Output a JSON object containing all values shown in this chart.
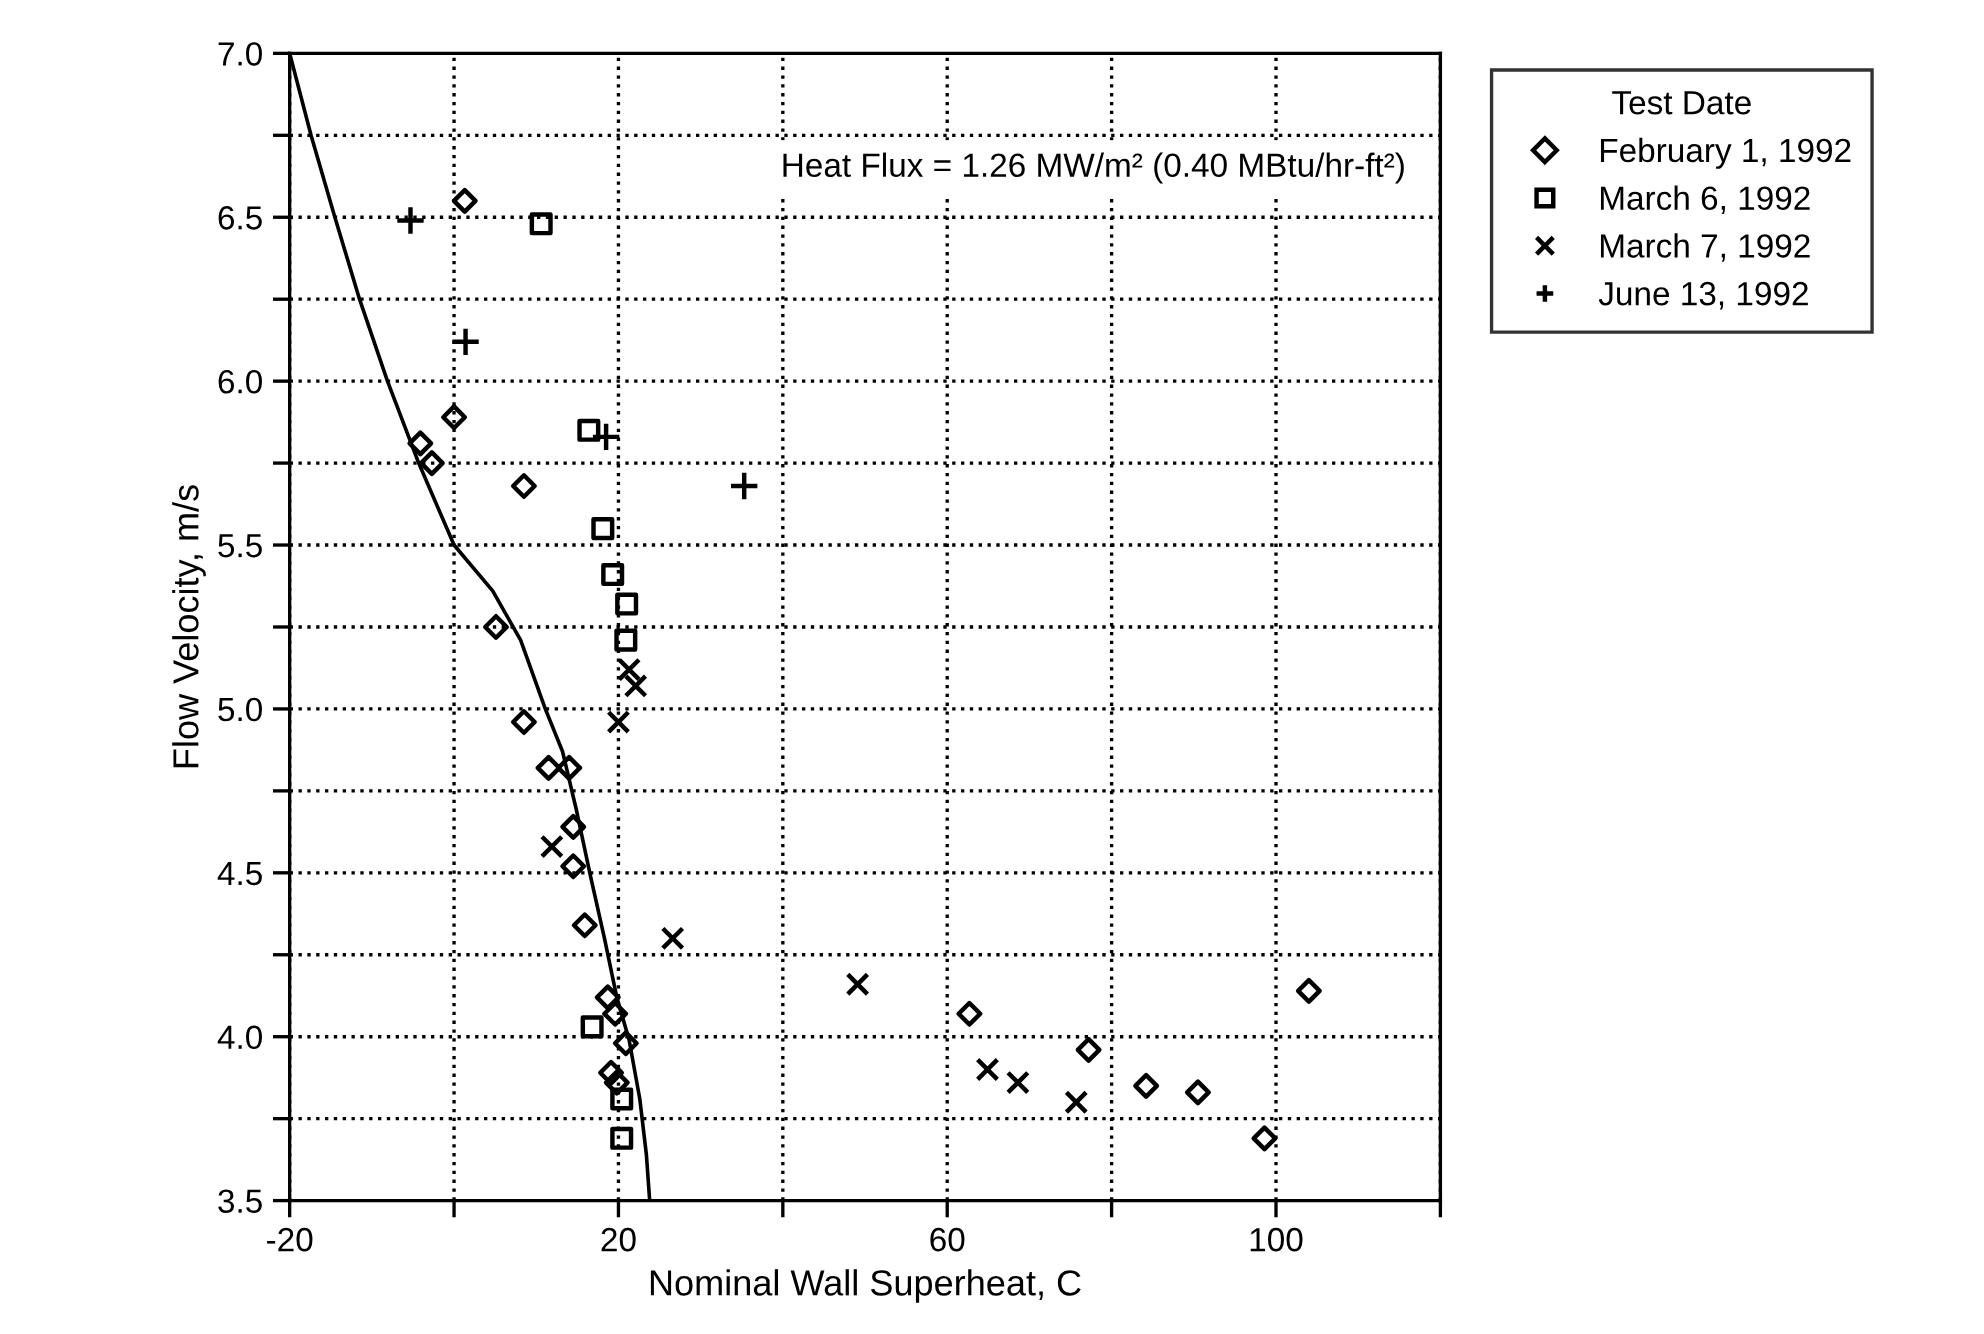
{
  "chart_data": {
    "type": "scatter",
    "xlabel": "Nominal Wall Superheat, C",
    "ylabel": "Flow Velocity, m/s",
    "legend_title": "Test Date",
    "annotations": [
      "Heat Flux = 1.26 MW/m² (0.40 MBtu/hr-ft²)"
    ],
    "xlim": [
      -20,
      120
    ],
    "ylim": [
      3.5,
      7.0
    ],
    "xticks": [
      -20,
      {
        "value": 0,
        "label": null
      },
      20,
      {
        "value": 40,
        "label": null
      },
      60,
      {
        "value": 80,
        "label": null
      },
      100,
      {
        "value": 120,
        "label": null
      }
    ],
    "yticks": [
      3.5,
      {
        "value": 3.75,
        "label": null
      },
      {
        "value": 4,
        "label": "4.0"
      },
      {
        "value": 4.25,
        "label": null
      },
      4.5,
      {
        "value": 4.75,
        "label": null
      },
      {
        "value": 5,
        "label": "5.0"
      },
      {
        "value": 5.25,
        "label": null
      },
      5.5,
      {
        "value": 5.75,
        "label": null
      },
      {
        "value": 6,
        "label": "6.0"
      },
      {
        "value": 6.25,
        "label": null
      },
      6.5,
      {
        "value": 6.75,
        "label": null
      },
      {
        "value": 7,
        "label": "7.0"
      }
    ],
    "grid": true,
    "legend": "top right",
    "series": [
      {
        "name": "February 1, 1992",
        "color": "#000000",
        "marker": "diamond",
        "x": [
          1.3,
          0,
          -4.1,
          -2.7,
          8.5,
          5.1,
          8.5,
          11.5,
          14.0,
          14.5,
          14.5,
          15.9,
          18.7,
          19.6,
          20.9,
          19.1,
          19.8,
          62.7,
          77.2,
          84.2,
          90.5,
          98.6,
          104.0
        ],
        "values": [
          6.55,
          5.89,
          5.81,
          5.75,
          5.68,
          5.25,
          4.96,
          4.82,
          4.82,
          4.64,
          4.52,
          4.34,
          4.12,
          4.07,
          3.98,
          3.89,
          3.86,
          4.07,
          3.96,
          3.85,
          3.83,
          3.69,
          4.14
        ]
      },
      {
        "name": "March 6, 1992",
        "color": "#000000",
        "marker": "square",
        "x": [
          10.6,
          16.4,
          18.1,
          19.3,
          21.0,
          20.9,
          16.8,
          20.4,
          20.4
        ],
        "values": [
          6.48,
          5.85,
          5.55,
          5.41,
          5.32,
          5.21,
          4.03,
          3.81,
          3.69
        ]
      },
      {
        "name": "March 7, 1992",
        "color": "#000000",
        "marker": "cross",
        "x": [
          21.3,
          22.1,
          20.0,
          11.9,
          26.6,
          49.1,
          64.9,
          68.6,
          75.7
        ],
        "values": [
          5.12,
          5.07,
          4.96,
          4.58,
          4.3,
          4.16,
          3.9,
          3.86,
          3.8
        ]
      },
      {
        "name": "June 13, 1992",
        "color": "#000000",
        "marker": "plus",
        "x": [
          -5.3,
          1.4,
          18.5,
          35.3
        ],
        "values": [
          6.49,
          6.12,
          5.83,
          5.68
        ]
      },
      {
        "type": "line",
        "color": "#000000",
        "marker": "none",
        "line_style": "solid",
        "x": [
          -20,
          -17.4,
          -14.5,
          -11.5,
          -8.1,
          -4.3,
          0,
          4.7,
          8.1,
          11.1,
          13.2,
          14.9,
          16.6,
          18.3,
          19.8,
          21.3,
          22.6,
          23.4,
          23.8
        ],
        "values": [
          7.0,
          6.75,
          6.5,
          6.25,
          6.0,
          5.75,
          5.5,
          5.36,
          5.21,
          5.0,
          4.87,
          4.69,
          4.49,
          4.3,
          4.12,
          3.99,
          3.81,
          3.64,
          3.5
        ]
      }
    ]
  }
}
